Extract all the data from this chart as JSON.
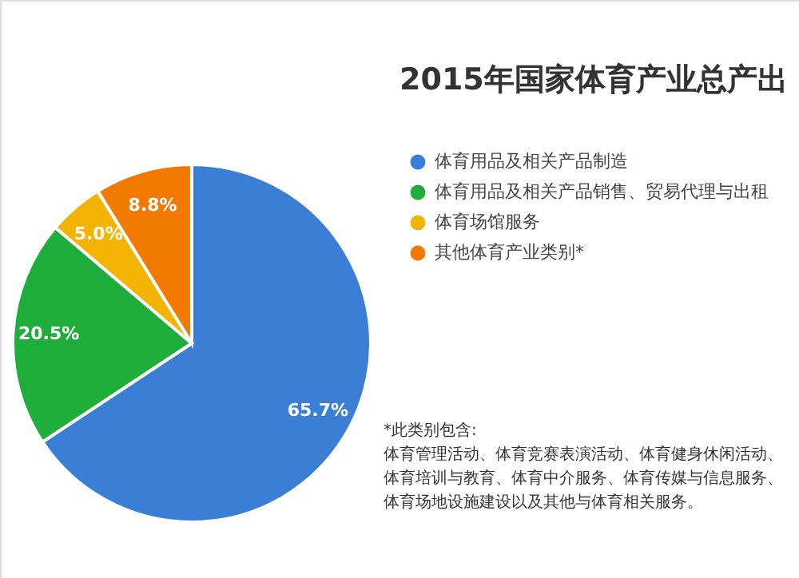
{
  "chart_data": {
    "type": "pie",
    "title": "2015年国家体育产业总产出",
    "categories": [
      "体育用品及相关产品制造",
      "体育用品及相关产品销售、贸易代理与出租",
      "体育场馆服务",
      "其他体育产业类别*"
    ],
    "values": [
      65.7,
      20.5,
      5.0,
      8.8
    ],
    "value_labels": [
      "65.7%",
      "20.5%",
      "5.0%",
      "8.8%"
    ],
    "colors": [
      "#3a7fd5",
      "#1fae3c",
      "#f2b400",
      "#f27a00"
    ],
    "legend": "right",
    "annotations": [
      "*此类别包含:",
      "体育管理活动、体育竞赛表演活动、体育健身休闲活动、",
      "体育培训与教育、体育中介服务、体育传媒与信息服务、",
      "体育场地设施建设以及其他与体育相关服务。"
    ]
  }
}
